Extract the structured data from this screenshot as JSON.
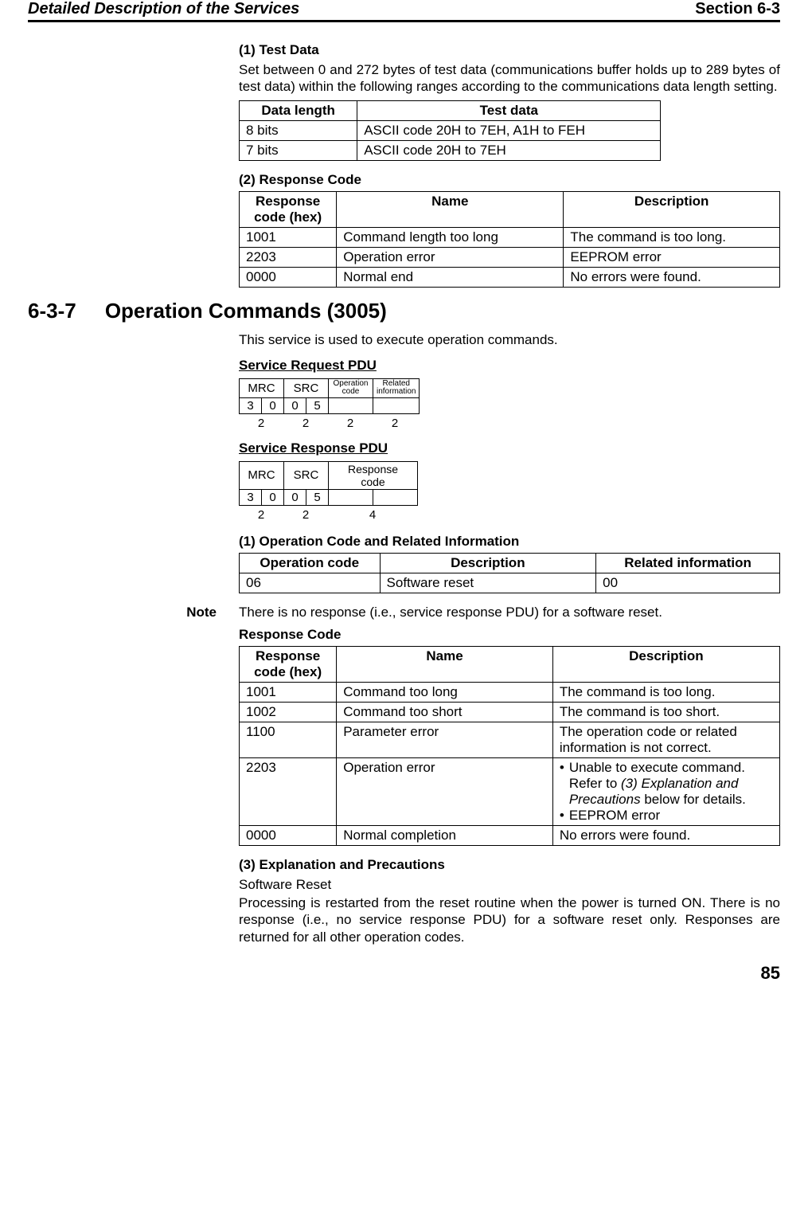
{
  "header": {
    "left": "Detailed Description of the Services",
    "right": "Section 6-3"
  },
  "sec1": {
    "h": "(1) Test Data",
    "p": "Set between 0 and 272 bytes of test data (communications buffer holds up to 289 bytes of test data) within the following ranges according to the communications data length setting.",
    "table": {
      "cols": [
        "Data length",
        "Test data"
      ],
      "rows": [
        [
          "8 bits",
          "ASCII code 20H to 7EH, A1H to FEH"
        ],
        [
          "7 bits",
          "ASCII code 20H to 7EH"
        ]
      ]
    }
  },
  "sec2": {
    "h": "(2) Response Code",
    "table": {
      "cols": [
        "Response code (hex)",
        "Name",
        "Description"
      ],
      "rows": [
        [
          "1001",
          "Command length too long",
          "The command is too long."
        ],
        [
          "2203",
          "Operation error",
          "EEPROM error"
        ],
        [
          "0000",
          "Normal end",
          "No errors were found."
        ]
      ]
    }
  },
  "main_heading_num": "6-3-7",
  "main_heading_text": "Operation Commands (3005)",
  "main_intro": "This service is used to execute operation commands.",
  "pdu1": {
    "h": "Service Request PDU",
    "mrc_label": "MRC",
    "src_label": "SRC",
    "op_label": "Operation code",
    "rel_label": "Related information",
    "mrc1": "3",
    "mrc2": "0",
    "src1": "0",
    "src2": "5",
    "w1": "2",
    "w2": "2",
    "w3": "2",
    "w4": "2"
  },
  "pdu2": {
    "h": "Service Response PDU",
    "mrc_label": "MRC",
    "src_label": "SRC",
    "resp_label": "Response code",
    "mrc1": "3",
    "mrc2": "0",
    "src1": "0",
    "src2": "5",
    "w1": "2",
    "w2": "2",
    "w3": "4"
  },
  "sec3": {
    "h": "(1) Operation Code and Related Information",
    "table": {
      "cols": [
        "Operation code",
        "Description",
        "Related information"
      ],
      "rows": [
        [
          "06",
          "Software reset",
          "00"
        ]
      ]
    }
  },
  "note_label": "Note",
  "note_text": "There is no response (i.e., service response PDU) for a software reset.",
  "respcode_h": "Response Code",
  "respcode": {
    "cols": [
      "Response code (hex)",
      "Name",
      "Description"
    ],
    "rows": [
      {
        "c0": "1001",
        "c1": "Command too long",
        "c2_plain": "The command is too long."
      },
      {
        "c0": "1002",
        "c1": "Command too short",
        "c2_plain": "The command is too short."
      },
      {
        "c0": "1100",
        "c1": "Parameter error",
        "c2_plain": "The operation code or related information is not correct."
      },
      {
        "c0": "2203",
        "c1": "Operation error",
        "c2_bullets": [
          {
            "pre": "Unable to execute command. Refer to ",
            "ital": "(3) Explanation and Precautions",
            "post": " below for details."
          },
          {
            "pre": "EEPROM error"
          }
        ]
      },
      {
        "c0": "0000",
        "c1": "Normal completion",
        "c2_plain": "No errors were found."
      }
    ]
  },
  "sec4": {
    "h": "(3) Explanation and Precautions",
    "sub": "Software Reset",
    "p": "Processing is restarted from the reset routine when the power is turned ON. There is no response (i.e., no service response PDU) for a software reset only. Responses are returned for all other operation codes."
  },
  "page_number": "85"
}
